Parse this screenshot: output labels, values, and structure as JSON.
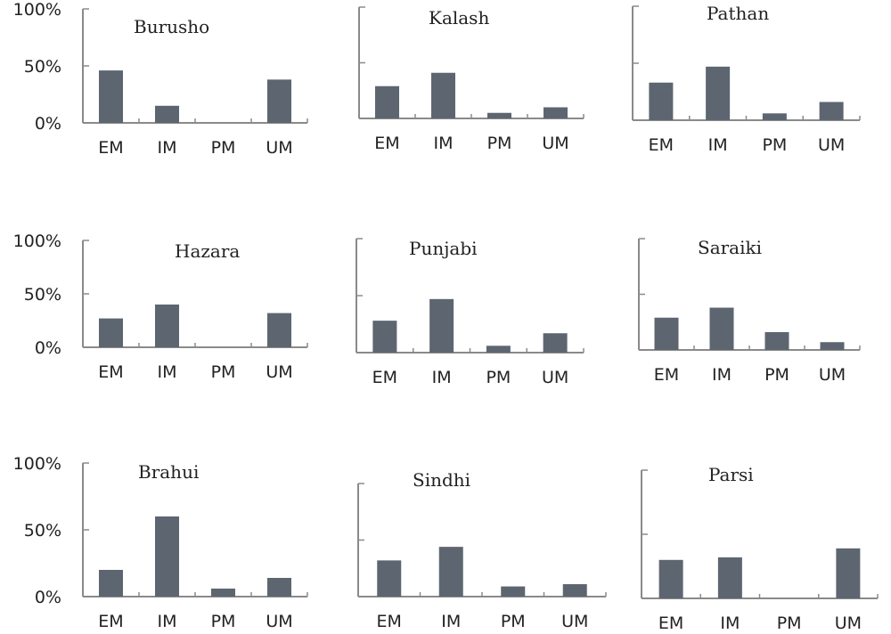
{
  "chart_data": [
    {
      "type": "bar",
      "title": "Burusho",
      "categories": [
        "EM",
        "IM",
        "PM",
        "UM"
      ],
      "values": [
        46,
        15,
        0,
        38
      ],
      "ylim": [
        0,
        100
      ],
      "yticks": [
        "100%",
        "50%",
        "0%"
      ]
    },
    {
      "type": "bar",
      "title": "Kalash",
      "categories": [
        "EM",
        "IM",
        "PM",
        "UM"
      ],
      "values": [
        29,
        41,
        5,
        10
      ],
      "ylim": [
        0,
        100
      ],
      "yticks": []
    },
    {
      "type": "bar",
      "title": "Pathan",
      "categories": [
        "EM",
        "IM",
        "PM",
        "UM"
      ],
      "values": [
        33,
        47,
        6,
        16
      ],
      "ylim": [
        0,
        100
      ],
      "yticks": []
    },
    {
      "type": "bar",
      "title": "Hazara",
      "categories": [
        "EM",
        "IM",
        "PM",
        "UM"
      ],
      "values": [
        27,
        40,
        0,
        32
      ],
      "ylim": [
        0,
        100
      ],
      "yticks": [
        "100%",
        "50%",
        "0%"
      ]
    },
    {
      "type": "bar",
      "title": "Punjabi",
      "categories": [
        "EM",
        "IM",
        "PM",
        "UM"
      ],
      "values": [
        28,
        47,
        6,
        17
      ],
      "ylim": [
        0,
        100
      ],
      "yticks": []
    },
    {
      "type": "bar",
      "title": "Saraiki",
      "categories": [
        "EM",
        "IM",
        "PM",
        "UM"
      ],
      "values": [
        29,
        38,
        16,
        7
      ],
      "ylim": [
        0,
        100
      ],
      "yticks": []
    },
    {
      "type": "bar",
      "title": "Brahui",
      "categories": [
        "EM",
        "IM",
        "PM",
        "UM"
      ],
      "values": [
        20,
        60,
        6,
        14
      ],
      "ylim": [
        0,
        100
      ],
      "yticks": [
        "100%",
        "50%",
        "0%"
      ]
    },
    {
      "type": "bar",
      "title": "Sindhi",
      "categories": [
        "EM",
        "IM",
        "PM",
        "UM"
      ],
      "values": [
        32,
        44,
        9,
        11
      ],
      "ylim": [
        0,
        100
      ],
      "yticks": []
    },
    {
      "type": "bar",
      "title": "Parsi",
      "categories": [
        "EM",
        "IM",
        "PM",
        "UM"
      ],
      "values": [
        30,
        32,
        0,
        39
      ],
      "ylim": [
        0,
        100
      ],
      "yticks": []
    }
  ]
}
